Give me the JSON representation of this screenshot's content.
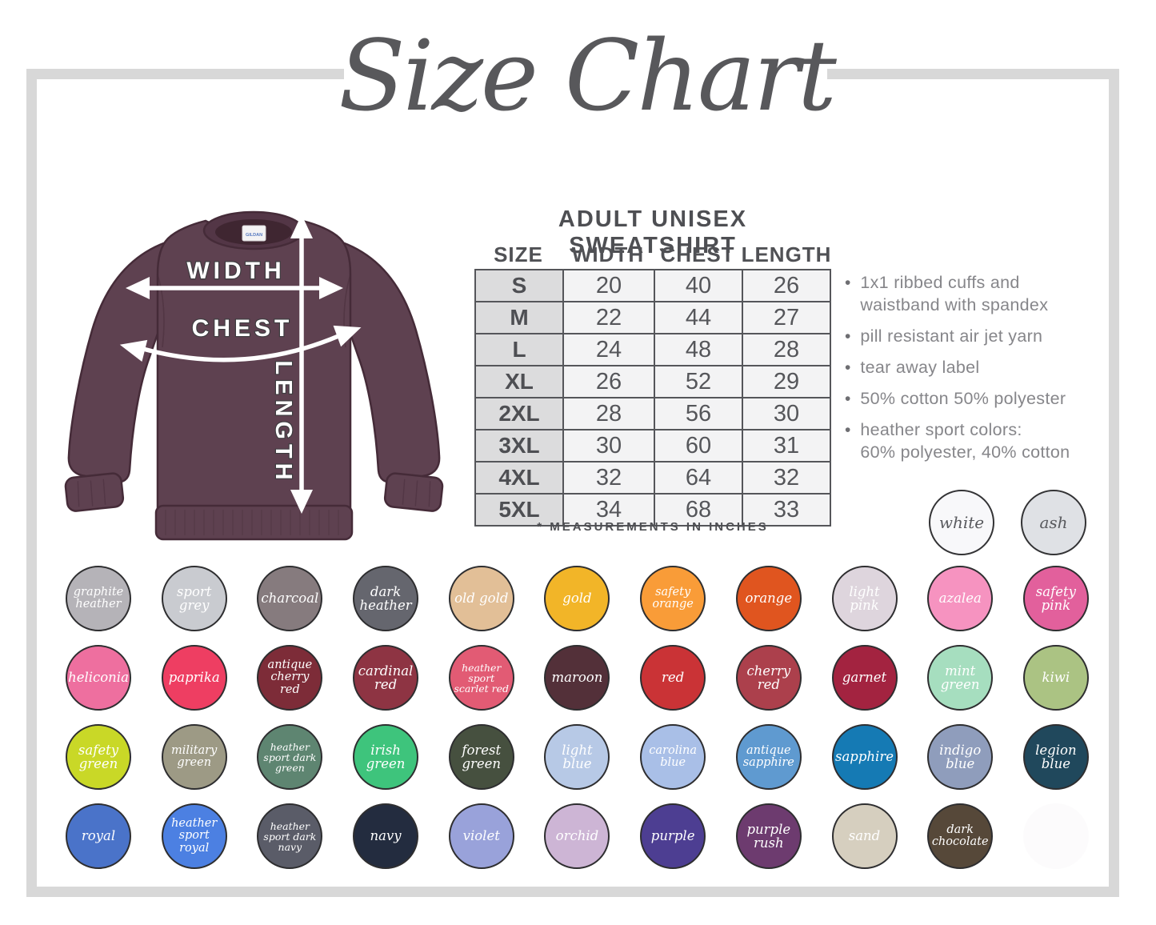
{
  "title": "Size Chart",
  "product": {
    "heading": "ADULT UNISEX SWEATSHIRT",
    "table": {
      "headers": [
        "SIZE",
        "WIDTH",
        "CHEST",
        "LENGTH"
      ],
      "rows": [
        [
          "S",
          "20",
          "40",
          "26"
        ],
        [
          "M",
          "22",
          "44",
          "27"
        ],
        [
          "L",
          "24",
          "48",
          "28"
        ],
        [
          "XL",
          "26",
          "52",
          "29"
        ],
        [
          "2XL",
          "28",
          "56",
          "30"
        ],
        [
          "3XL",
          "30",
          "60",
          "31"
        ],
        [
          "4XL",
          "32",
          "64",
          "32"
        ],
        [
          "5XL",
          "34",
          "68",
          "33"
        ]
      ]
    },
    "note": "* MEASUREMENTS IN INCHES",
    "features": [
      "1x1 ribbed cuffs and\nwaistband with spandex",
      "pill resistant air jet yarn",
      "tear away label",
      "50% cotton 50% polyester",
      "heather sport colors:\n60% polyester, 40% cotton"
    ]
  },
  "diagram": {
    "labels": {
      "width": "WIDTH",
      "chest": "CHEST",
      "length": "LENGTH"
    },
    "brand": "GILDAN",
    "shirt_color": "#5e4150"
  },
  "swatches": {
    "standalone": [
      {
        "name": "white",
        "color": "#f8f8fa",
        "text_color": "#595a5e"
      },
      {
        "name": "ash",
        "color": "#dfe1e5",
        "text_color": "#595a5e"
      }
    ],
    "rows": [
      [
        {
          "name": "graphite heather",
          "color": "#b5b3b8"
        },
        {
          "name": "sport grey",
          "color": "#c9cbd0"
        },
        {
          "name": "charcoal",
          "color": "#867b7e"
        },
        {
          "name": "dark heather",
          "color": "#65666e"
        },
        {
          "name": "old gold",
          "color": "#e2bf97"
        },
        {
          "name": "gold",
          "color": "#f2b528"
        },
        {
          "name": "safety orange",
          "color": "#f99c38"
        },
        {
          "name": "orange",
          "color": "#e0551f"
        },
        {
          "name": "light pink",
          "color": "#ded5dd"
        },
        {
          "name": "azalea",
          "color": "#f693c0"
        },
        {
          "name": "safety pink",
          "color": "#e2609c"
        }
      ],
      [
        {
          "name": "heliconia",
          "color": "#ee6f9f"
        },
        {
          "name": "paprika",
          "color": "#ee3e62"
        },
        {
          "name": "antique cherry red",
          "color": "#7d2c38"
        },
        {
          "name": "cardinal red",
          "color": "#8e3443"
        },
        {
          "name": "heather sport scarlet red",
          "color": "#e25b74"
        },
        {
          "name": "maroon",
          "color": "#533039"
        },
        {
          "name": "red",
          "color": "#ca3336"
        },
        {
          "name": "cherry red",
          "color": "#ac404c"
        },
        {
          "name": "garnet",
          "color": "#a32340"
        },
        {
          "name": "mint green",
          "color": "#a6debf"
        },
        {
          "name": "kiwi",
          "color": "#abc383"
        }
      ],
      [
        {
          "name": "safety green",
          "color": "#c9d827"
        },
        {
          "name": "military green",
          "color": "#9d9a85"
        },
        {
          "name": "heather sport dark green",
          "color": "#5e8571"
        },
        {
          "name": "irish green",
          "color": "#3ec47c"
        },
        {
          "name": "forest green",
          "color": "#46503f"
        },
        {
          "name": "light blue",
          "color": "#b7c9e6"
        },
        {
          "name": "carolina blue",
          "color": "#a9bfe7"
        },
        {
          "name": "antique sapphire",
          "color": "#5f9ad0"
        },
        {
          "name": "sapphire",
          "color": "#157ab4"
        },
        {
          "name": "indigo blue",
          "color": "#8f9dbc"
        },
        {
          "name": "legion blue",
          "color": "#20485c"
        }
      ],
      [
        {
          "name": "royal",
          "color": "#4a73c9"
        },
        {
          "name": "heather sport royal",
          "color": "#4c80e2"
        },
        {
          "name": "heather sport dark navy",
          "color": "#5a5c68"
        },
        {
          "name": "navy",
          "color": "#232c3f"
        },
        {
          "name": "violet",
          "color": "#99a2da"
        },
        {
          "name": "orchid",
          "color": "#cdb5d5"
        },
        {
          "name": "purple",
          "color": "#4d3e92"
        },
        {
          "name": "purple rush",
          "color": "#6d3b6f"
        },
        {
          "name": "sand",
          "color": "#d6cfbf"
        },
        {
          "name": "dark chocolate",
          "color": "#564839"
        },
        {
          "name": "",
          "color": "#fcfbfc",
          "ghost": true
        }
      ]
    ]
  }
}
